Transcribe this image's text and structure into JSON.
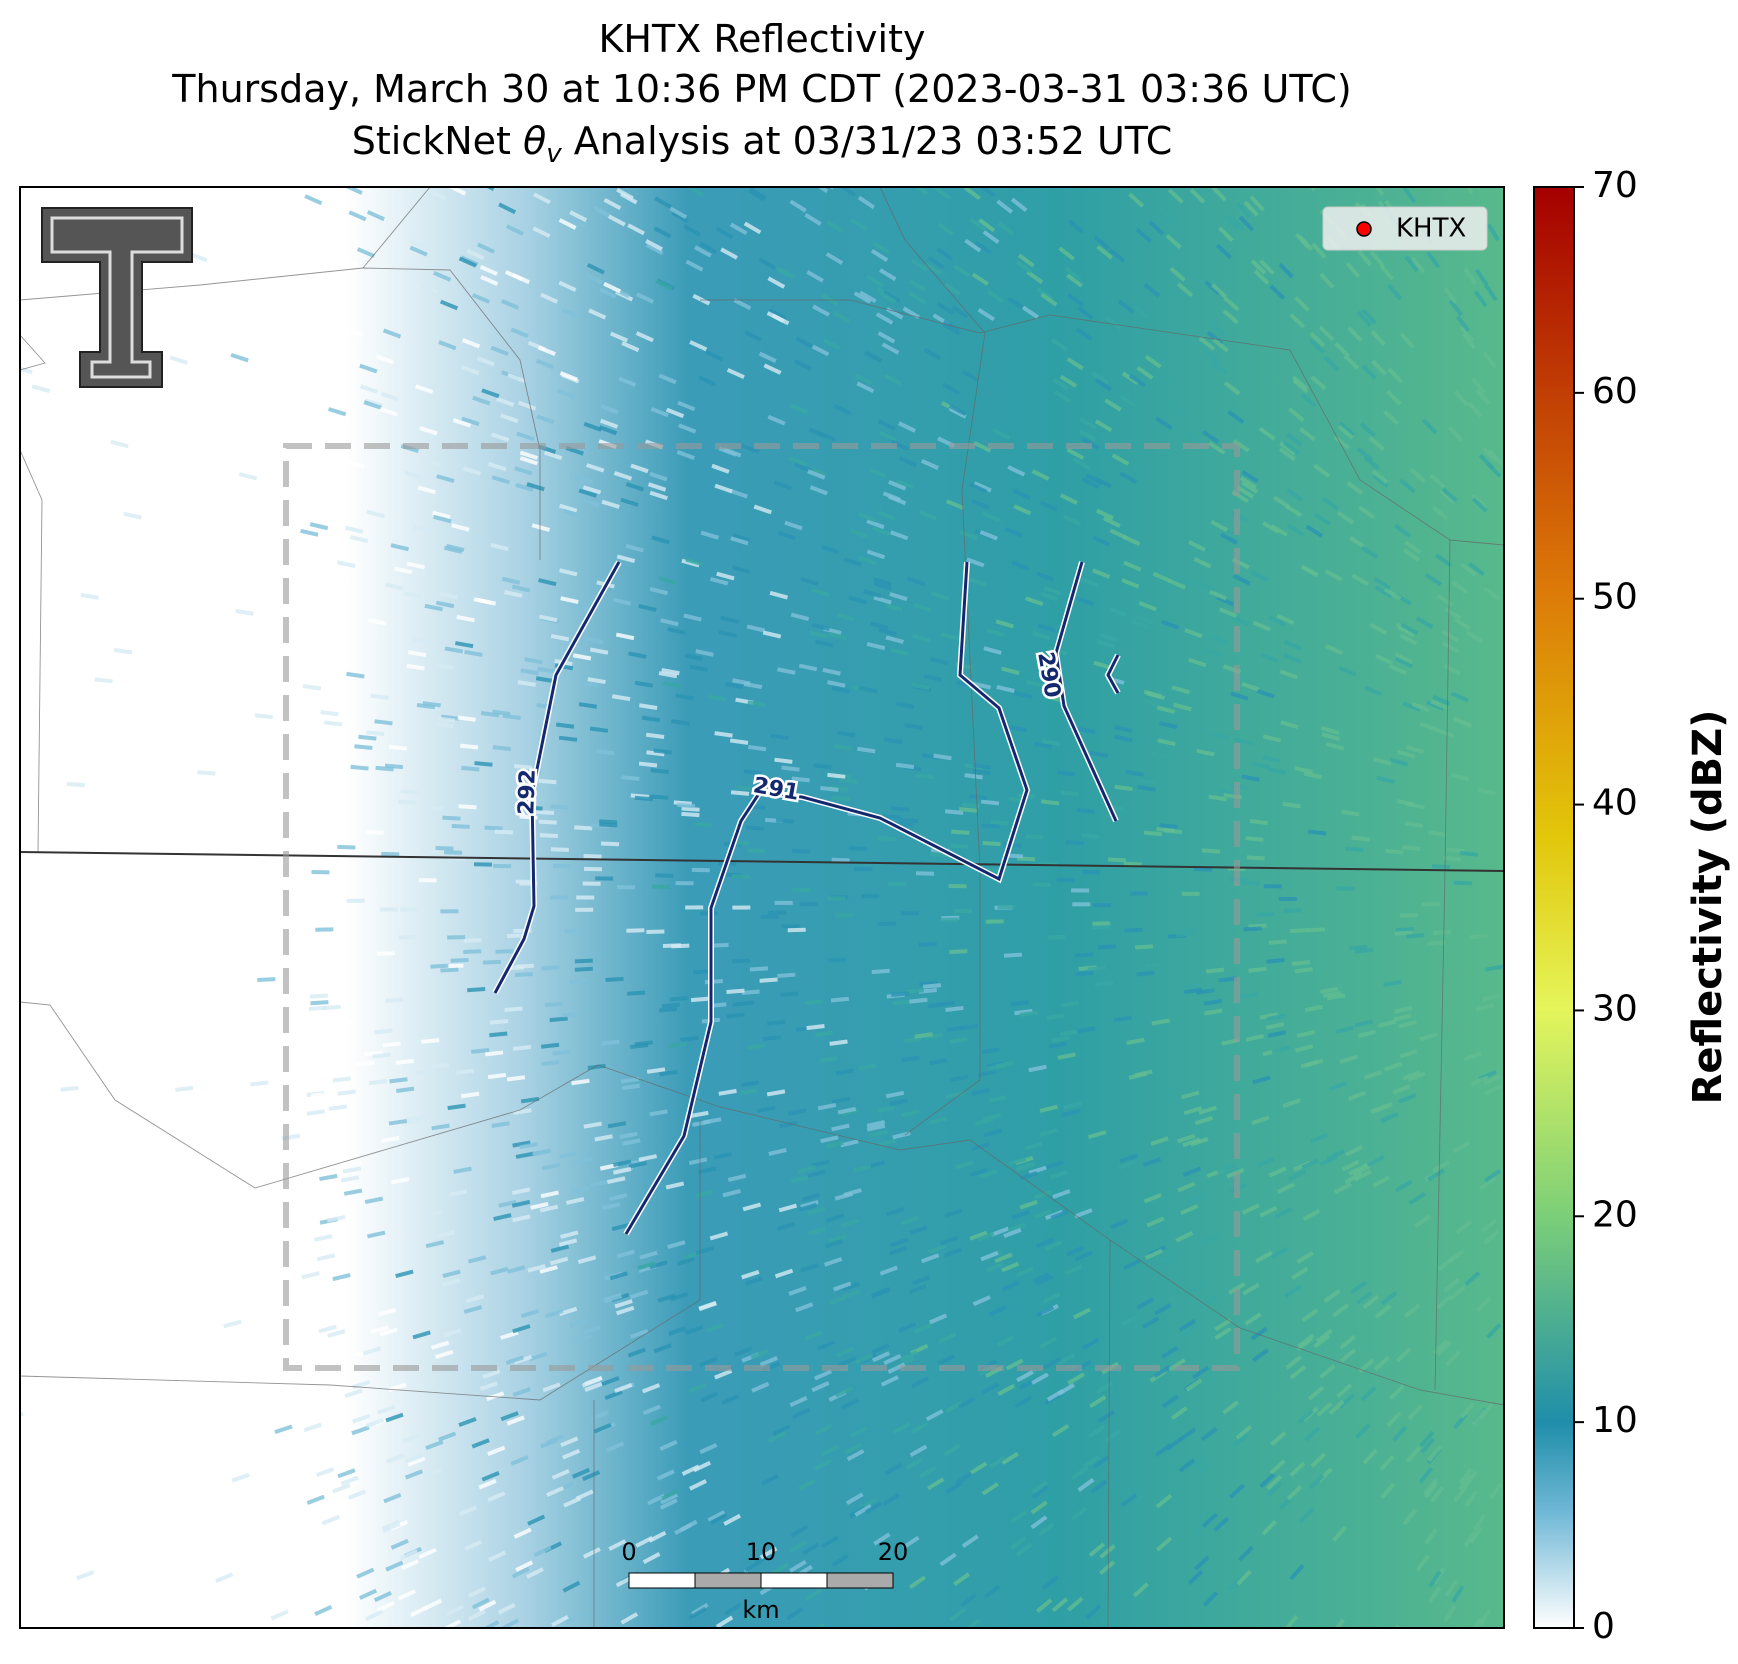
{
  "header": {
    "title_lines": [
      "KHTX Reflectivity",
      "Thursday, March 30 at 10:36 PM CDT (2023-03-31 03:36 UTC)"
    ],
    "analysis": {
      "prefix": "StickNet ",
      "symbol": "θ",
      "subscript": "v",
      "suffix": " Analysis at 03/31/23 03:52 UTC"
    }
  },
  "legend": {
    "label": "KHTX",
    "color": "#ff0000"
  },
  "contours": [
    292,
    291,
    290
  ],
  "scale_bar": {
    "ticks": [
      0,
      10,
      20
    ],
    "unit": "km"
  },
  "colorbar": {
    "label": "Reflectivity (dBZ)",
    "lim": [
      0,
      70
    ],
    "ticks": [
      0,
      10,
      20,
      30,
      40,
      50,
      60,
      70
    ]
  }
}
